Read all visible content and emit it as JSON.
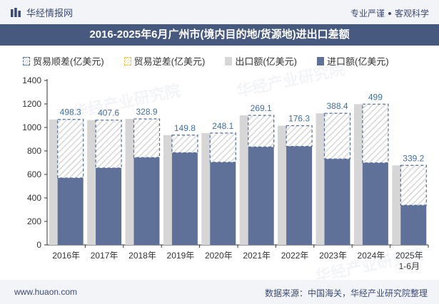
{
  "header": {
    "brand_name": "华经情报网",
    "slogan_left": "专业严谨",
    "slogan_right": "客观科学"
  },
  "footer": {
    "url": "www.huaon.com",
    "source": "数据来源：中国海关，华经产业研究院整理"
  },
  "watermark": "华经产业研究院",
  "colors": {
    "export": "#d6d6d6",
    "import": "#5f7199",
    "surplus_border": "#4f6e9e",
    "deficit_border": "#e8c642",
    "label": "#3f6fa6",
    "title_bg": "#47597e"
  },
  "chart_data": {
    "type": "bar",
    "title": "2016-2025年6月广州市(境内目的地/货源地)进出口差额",
    "categories": [
      "2016年",
      "2017年",
      "2018年",
      "2019年",
      "2020年",
      "2021年",
      "2022年",
      "2023年",
      "2024年",
      "2025年\n1-6月"
    ],
    "series": [
      {
        "name": "贸易顺差(亿美元)",
        "values": [
          498.3,
          407.6,
          328.9,
          149.8,
          248.1,
          269.1,
          176.3,
          388.4,
          499,
          339.2
        ]
      },
      {
        "name": "贸易逆差(亿美元)",
        "values": [
          0,
          0,
          0,
          0,
          0,
          0,
          0,
          0,
          0,
          0
        ]
      },
      {
        "name": "出口额(亿美元)",
        "values": [
          1068,
          1063,
          1073,
          935,
          952,
          1103,
          1015,
          1120,
          1198,
          677
        ]
      },
      {
        "name": "进口额(亿美元)",
        "values": [
          570,
          655,
          744,
          785,
          704,
          834,
          839,
          732,
          699,
          338
        ]
      }
    ],
    "data_labels": [
      "498.3",
      "407.6",
      "328.9",
      "149.8",
      "248.1",
      "269.1",
      "176.3",
      "388.4",
      "499",
      "339.2"
    ],
    "ylim": [
      0,
      1400
    ],
    "yticks": [
      "0",
      "200",
      "400",
      "600",
      "800",
      "1000",
      "1200",
      "1400"
    ],
    "legend_position": "top",
    "grid": false
  }
}
